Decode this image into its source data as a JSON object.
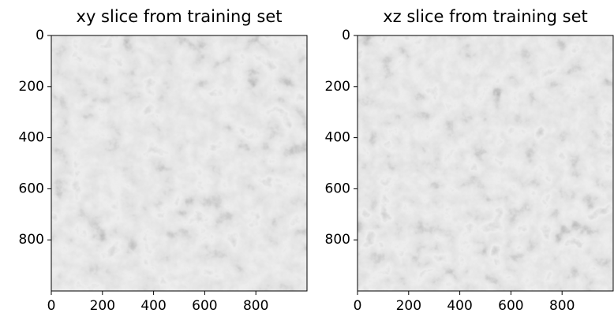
{
  "chart_data": [
    {
      "type": "image",
      "title": "xy slice from training set",
      "xlim": [
        0,
        1000
      ],
      "ylim": [
        1000,
        0
      ],
      "xticks": [
        0,
        200,
        400,
        600,
        800
      ],
      "yticks": [
        0,
        200,
        400,
        600,
        800
      ]
    },
    {
      "type": "image",
      "title": "xz slice from training set",
      "xlim": [
        0,
        1000
      ],
      "ylim": [
        1000,
        0
      ],
      "xticks": [
        0,
        200,
        400,
        600,
        800
      ],
      "yticks": [
        0,
        200,
        400,
        600,
        800
      ]
    }
  ]
}
